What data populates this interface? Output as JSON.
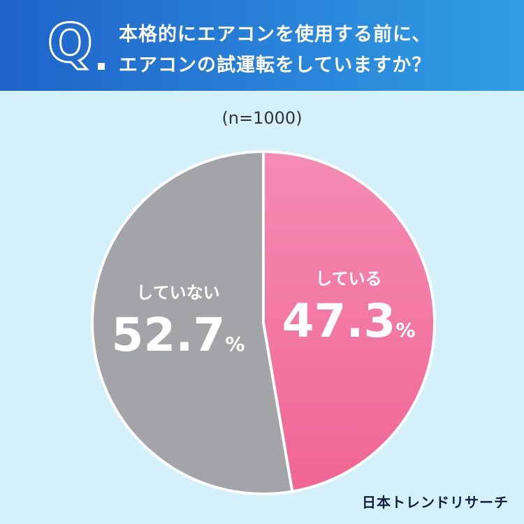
{
  "header": {
    "q_letter": "Q",
    "title_line1": "本格的にエアコンを使用する前に、",
    "title_line2": "エアコンの試運転をしていますか？"
  },
  "sample_size_label": "(n=1000)",
  "brand": "日本トレンドリサーチ",
  "chart_data": {
    "type": "pie",
    "title": "本格的にエアコンを使用する前に、エアコンの試運転をしていますか？",
    "n": 1000,
    "slices": [
      {
        "label": "している",
        "value": 47.3,
        "color": "#f27aa6"
      },
      {
        "label": "していない",
        "value": 52.7,
        "color": "#a3a4a8"
      }
    ]
  }
}
